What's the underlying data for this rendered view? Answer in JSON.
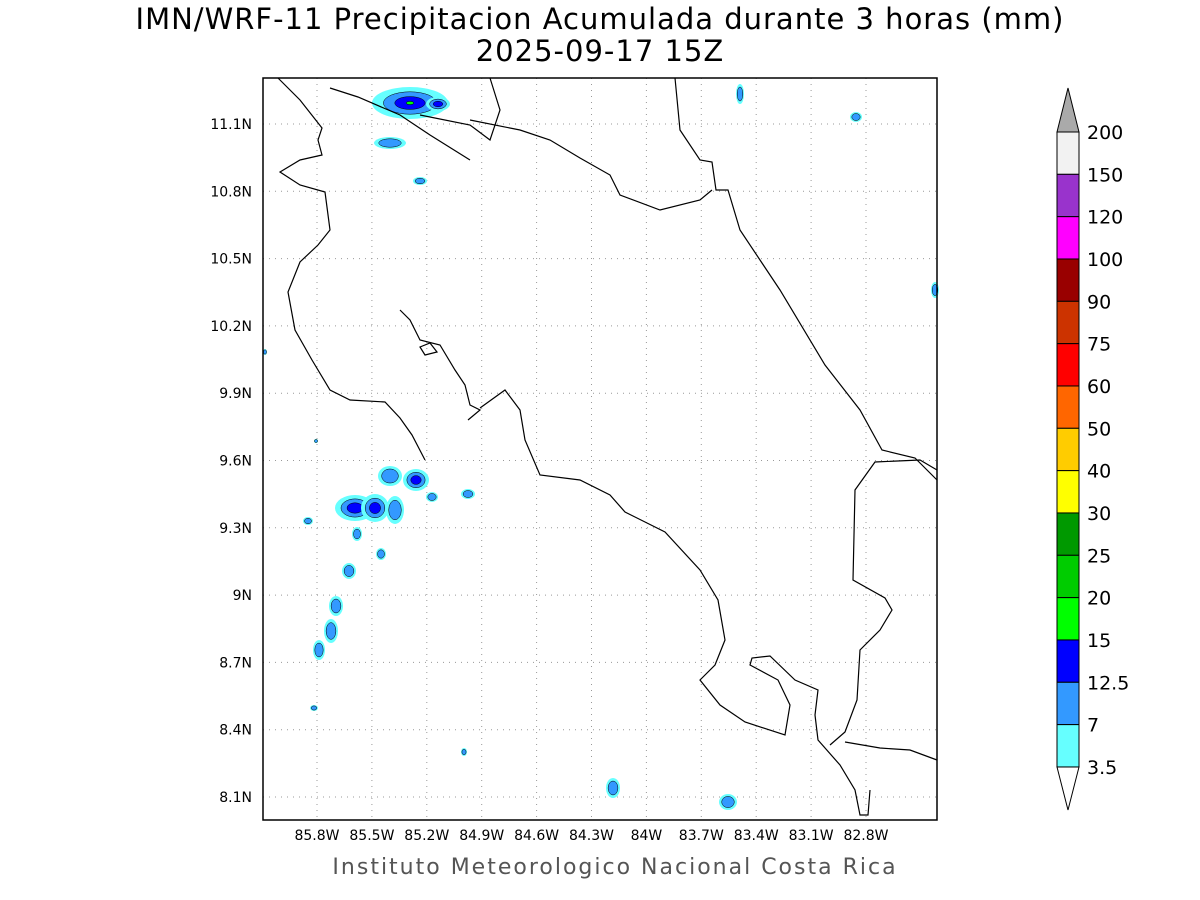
{
  "title": "IMN/WRF-11 Precipitacion Acumulada durante 3 horas (mm)",
  "subtitle": "2025-09-17 15Z",
  "credit": "Instituto Meteorologico Nacional Costa Rica",
  "axes": {
    "lon_ticks": [
      "85.8W",
      "85.5W",
      "85.2W",
      "84.9W",
      "84.6W",
      "84.3W",
      "84W",
      "83.7W",
      "83.4W",
      "83.1W",
      "82.8W"
    ],
    "lat_ticks": [
      "11.1N",
      "10.8N",
      "10.5N",
      "10.2N",
      "9.9N",
      "9.6N",
      "9.3N",
      "9N",
      "8.7N",
      "8.4N",
      "8.1N"
    ]
  },
  "legend": {
    "labels": [
      "200",
      "150",
      "120",
      "100",
      "90",
      "75",
      "60",
      "50",
      "40",
      "30",
      "25",
      "20",
      "15",
      "12.5",
      "7",
      "3.5"
    ],
    "colors": [
      "#f2f2f2",
      "#9933cc",
      "#ff00ff",
      "#990000",
      "#cc3300",
      "#ff0000",
      "#ff6600",
      "#ffcc00",
      "#ffff00",
      "#009900",
      "#00cc00",
      "#00ff00",
      "#0000ff",
      "#3399ff",
      "#66ffff"
    ],
    "over_color": "#aaaaaa",
    "under_color": "#ffffff"
  }
}
